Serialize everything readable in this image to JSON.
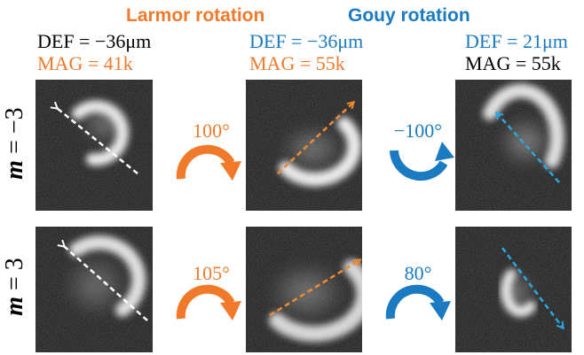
{
  "headers": {
    "larmor": "Larmor rotation",
    "gouy": "Gouy rotation"
  },
  "columns": [
    {
      "def": "DEF = −36μm",
      "mag": "MAG = 41k",
      "def_color": "#000000",
      "mag_color": "#f07a2a"
    },
    {
      "def": "DEF = −36μm",
      "mag": "MAG = 55k",
      "def_color": "#1a7ac2",
      "mag_color": "#f07a2a"
    },
    {
      "def": "DEF = 21μm",
      "mag": "MAG = 55k",
      "def_color": "#1a7ac2",
      "mag_color": "#000000"
    }
  ],
  "rows": [
    {
      "m_symbol": "m",
      "m_rest": " = −3",
      "larmor_angle": "100°",
      "gouy_angle": "−100°"
    },
    {
      "m_symbol": "m",
      "m_rest": " = 3",
      "larmor_angle": "105°",
      "gouy_angle": "80°"
    }
  ],
  "colors": {
    "orange": "#f07a2a",
    "blue": "#1a7ac2",
    "cyan_arrow": "#2aa7e0",
    "panel_bg": "#151515"
  },
  "icons": {
    "larmor_arrow": "clockwise-curved-arrow-icon",
    "gouy_arrow_row1": "counterclockwise-curved-arrow-icon",
    "gouy_arrow_row2": "clockwise-curved-arrow-icon"
  }
}
